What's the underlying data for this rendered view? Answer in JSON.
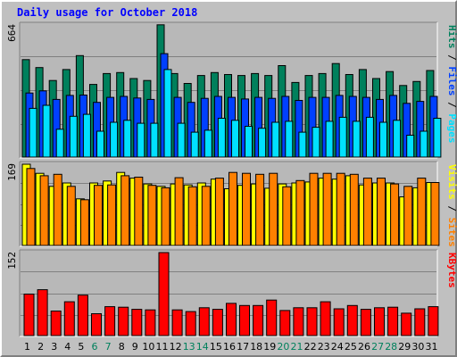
{
  "title": "Daily usage for October 2018",
  "colors": {
    "background": "#c0c0c0",
    "plot_background": "#b8b8b8",
    "grid": "#808080",
    "hits": "#00805c",
    "files": "#0040ff",
    "pages": "#00e0ff",
    "visits": "#ffff00",
    "sites": "#ff8000",
    "kbytes": "#ff0000",
    "weekday_label": "#000000",
    "weekend_label": "#00805c",
    "title": "#0000ff"
  },
  "panels": {
    "top": {
      "max_label": "664",
      "axis_labels": [
        {
          "text": "Pages",
          "color": "#00e0ff"
        },
        {
          "text": " / ",
          "color": "#000000"
        },
        {
          "text": "Files",
          "color": "#0040ff"
        },
        {
          "text": " / ",
          "color": "#000000"
        },
        {
          "text": "Hits",
          "color": "#00805c"
        }
      ]
    },
    "middle": {
      "max_label": "169",
      "axis_labels": [
        {
          "text": "Sites",
          "color": "#ff8000"
        },
        {
          "text": " / ",
          "color": "#000000"
        },
        {
          "text": "Visits",
          "color": "#ffff00"
        }
      ]
    },
    "bottom": {
      "max_label": "152",
      "axis_labels": [
        {
          "text": "KBytes",
          "color": "#ff0000"
        }
      ]
    }
  },
  "chart_data": {
    "type": "bar",
    "title": "Daily usage for October 2018",
    "categories": [
      "1",
      "2",
      "3",
      "4",
      "5",
      "6",
      "7",
      "8",
      "9",
      "10",
      "11",
      "12",
      "13",
      "14",
      "15",
      "16",
      "17",
      "18",
      "19",
      "20",
      "21",
      "22",
      "23",
      "24",
      "25",
      "26",
      "27",
      "28",
      "29",
      "30",
      "31"
    ],
    "weekend_days": [
      "6",
      "7",
      "13",
      "14",
      "20",
      "21",
      "27",
      "28"
    ],
    "panels": [
      {
        "name": "top",
        "ymax": 664,
        "series": [
          {
            "name": "Hits",
            "values": [
              490,
              450,
              385,
              440,
              510,
              365,
              420,
              425,
              395,
              385,
              665,
              420,
              370,
              410,
              425,
              415,
              410,
              420,
              410,
              460,
              375,
              410,
              420,
              470,
              415,
              440,
              395,
              430,
              360,
              380,
              435
            ]
          },
          {
            "name": "Files",
            "values": [
              322,
              333,
              290,
              310,
              312,
              275,
              300,
              305,
              297,
              290,
              520,
              300,
              275,
              295,
              305,
              300,
              292,
              300,
              295,
              305,
              285,
              300,
              300,
              310,
              305,
              300,
              290,
              310,
              270,
              280,
              305
            ]
          },
          {
            "name": "Pages",
            "values": [
              245,
              260,
              140,
              205,
              215,
              130,
              175,
              185,
              170,
              170,
              440,
              170,
              125,
              135,
              195,
              185,
              155,
              145,
              175,
              180,
              125,
              150,
              180,
              200,
              180,
              200,
              175,
              185,
              110,
              130,
              195
            ]
          }
        ]
      },
      {
        "name": "middle",
        "ymax": 169,
        "series": [
          {
            "name": "Visits",
            "values": [
              169,
              150,
              123,
              130,
              97,
              130,
              134,
              152,
              140,
              128,
              123,
              128,
              126,
              130,
              138,
              118,
              125,
              128,
              119,
              128,
              130,
              132,
              140,
              138,
              145,
              126,
              130,
              130,
              101,
              120,
              131
            ]
          },
          {
            "name": "Sites",
            "values": [
              160,
              145,
              148,
              123,
              95,
              125,
              126,
              145,
              142,
              125,
              120,
              141,
              122,
              123,
              140,
              152,
              150,
              148,
              150,
              122,
              135,
              150,
              150,
              150,
              148,
              140,
              140,
              128,
              123,
              140,
              131
            ]
          }
        ]
      },
      {
        "name": "bottom",
        "ymax": 152,
        "series": [
          {
            "name": "KBytes",
            "values": [
              76,
              84,
              45,
              62,
              74,
              40,
              53,
              52,
              48,
              47,
              152,
              47,
              44,
              51,
              48,
              59,
              55,
              55,
              65,
              46,
              51,
              51,
              62,
              49,
              55,
              48,
              51,
              52,
              41,
              49,
              53
            ]
          }
        ]
      }
    ]
  }
}
